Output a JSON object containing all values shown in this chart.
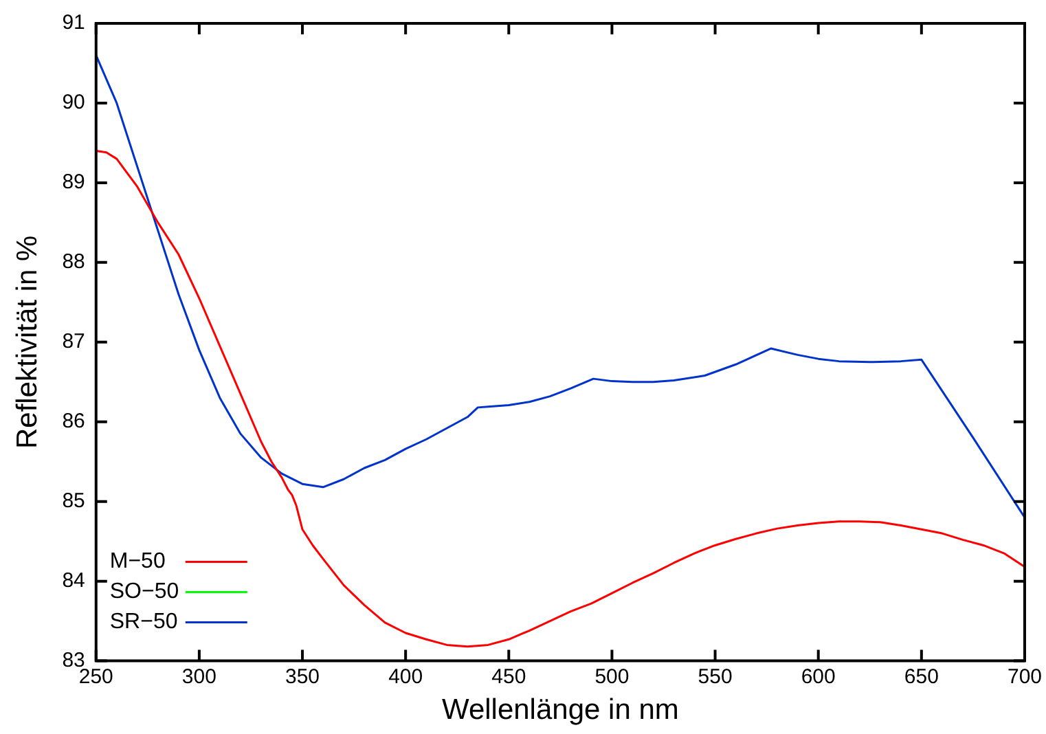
{
  "chart_data": {
    "type": "line",
    "xlabel": "Wellenlänge in nm",
    "ylabel": "Reflektivität in %",
    "xlim": [
      250,
      700
    ],
    "ylim": [
      83,
      91
    ],
    "xticks": [
      250,
      300,
      350,
      400,
      450,
      500,
      550,
      600,
      650,
      700
    ],
    "yticks": [
      83,
      84,
      85,
      86,
      87,
      88,
      89,
      90,
      91
    ],
    "grid": false,
    "legend": "bottom left",
    "line_style": "solid",
    "marker": "none",
    "series": [
      {
        "name": "M−50",
        "color": "#ff0000",
        "x": [
          250,
          255,
          260,
          270,
          280,
          290,
          300,
          310,
          320,
          330,
          335,
          340,
          343,
          345,
          347,
          350,
          355,
          360,
          370,
          380,
          390,
          400,
          410,
          420,
          430,
          440,
          450,
          460,
          470,
          480,
          490,
          500,
          510,
          520,
          530,
          540,
          550,
          560,
          570,
          580,
          590,
          600,
          610,
          620,
          630,
          640,
          650,
          660,
          670,
          680,
          690,
          700
        ],
        "values": [
          89.4,
          89.38,
          89.3,
          88.95,
          88.5,
          88.1,
          87.55,
          86.95,
          86.35,
          85.75,
          85.5,
          85.3,
          85.15,
          85.08,
          84.95,
          84.65,
          84.45,
          84.28,
          83.95,
          83.7,
          83.48,
          83.35,
          83.27,
          83.2,
          83.18,
          83.2,
          83.27,
          83.38,
          83.5,
          83.62,
          83.72,
          83.85,
          83.98,
          84.1,
          84.23,
          84.35,
          84.45,
          84.53,
          84.6,
          84.66,
          84.7,
          84.73,
          84.75,
          84.75,
          84.74,
          84.7,
          84.65,
          84.6,
          84.52,
          84.45,
          84.35,
          84.18
        ]
      },
      {
        "name": "SO−50",
        "color": "#00ff00"
      },
      {
        "name": "SR−50",
        "color": "#0033cc",
        "x": [
          250,
          260,
          270,
          280,
          290,
          300,
          310,
          320,
          330,
          340,
          350,
          360,
          370,
          380,
          390,
          400,
          410,
          420,
          430,
          435,
          440,
          450,
          460,
          470,
          480,
          491,
          500,
          510,
          520,
          530,
          545,
          560,
          577,
          590,
          600,
          610,
          625,
          640,
          650,
          675,
          700
        ],
        "values": [
          90.6,
          90.0,
          89.2,
          88.4,
          87.6,
          86.9,
          86.3,
          85.85,
          85.55,
          85.35,
          85.22,
          85.18,
          85.28,
          85.42,
          85.52,
          85.66,
          85.78,
          85.92,
          86.06,
          86.18,
          86.19,
          86.21,
          86.25,
          86.32,
          86.42,
          86.54,
          86.51,
          86.5,
          86.5,
          86.52,
          86.58,
          86.72,
          86.92,
          86.84,
          86.79,
          86.76,
          86.75,
          86.76,
          86.78,
          85.8,
          84.8
        ]
      }
    ]
  }
}
